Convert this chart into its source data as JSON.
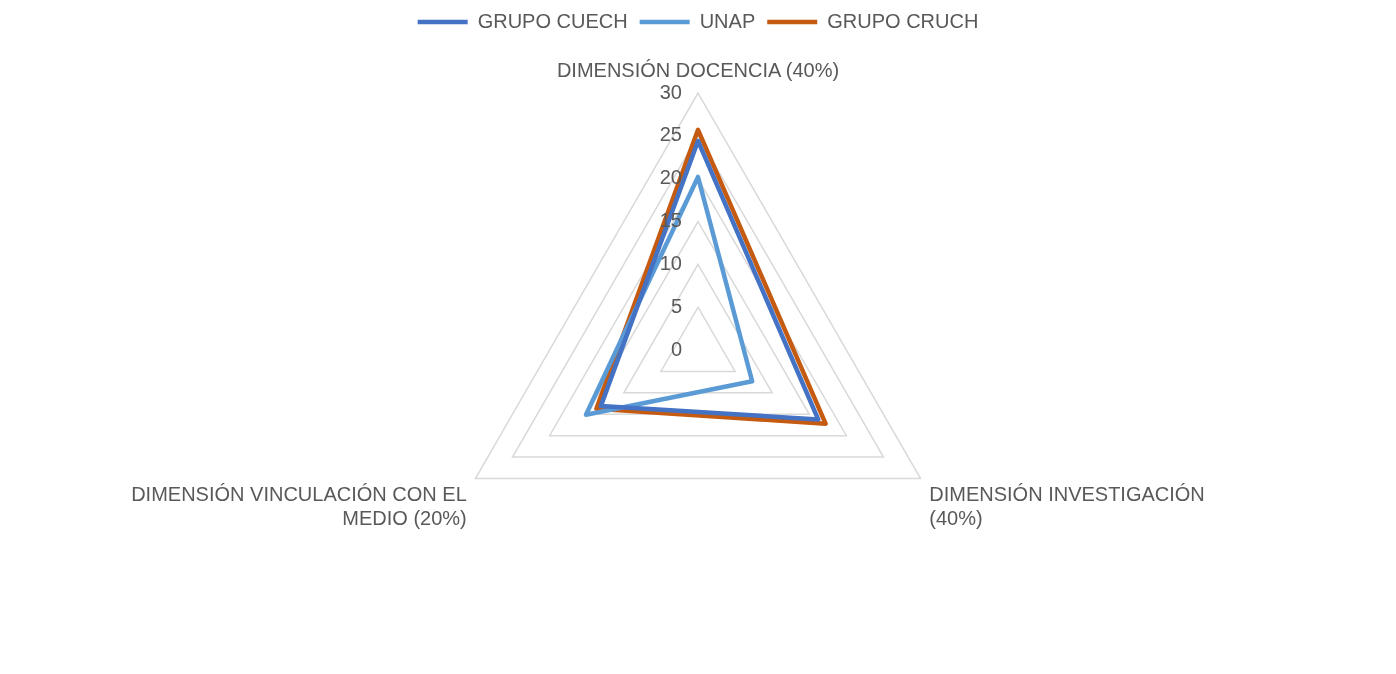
{
  "chart_data": {
    "type": "radar",
    "categories": [
      "DIMENSIÓN DOCENCIA (40%)",
      "DIMENSIÓN INVESTIGACIÓN (40%)",
      "DIMENSIÓN VINCULACIÓN CON EL MEDIO (20%)"
    ],
    "series": [
      {
        "name": "GRUPO CUECH",
        "color": "#4472c4",
        "values": [
          24.4,
          16.2,
          13.1
        ]
      },
      {
        "name": "UNAP",
        "color": "#5b9bd5",
        "values": [
          20.2,
          7.3,
          15.1
        ]
      },
      {
        "name": "GRUPO CRUCH",
        "color": "#c55a11",
        "values": [
          25.7,
          17.2,
          13.7
        ]
      }
    ],
    "ylim": [
      0,
      30
    ],
    "yticks": [
      0,
      5,
      10,
      15,
      20,
      25,
      30
    ],
    "grid": true,
    "legend": "top",
    "marker": "none",
    "line_style": "solid"
  }
}
